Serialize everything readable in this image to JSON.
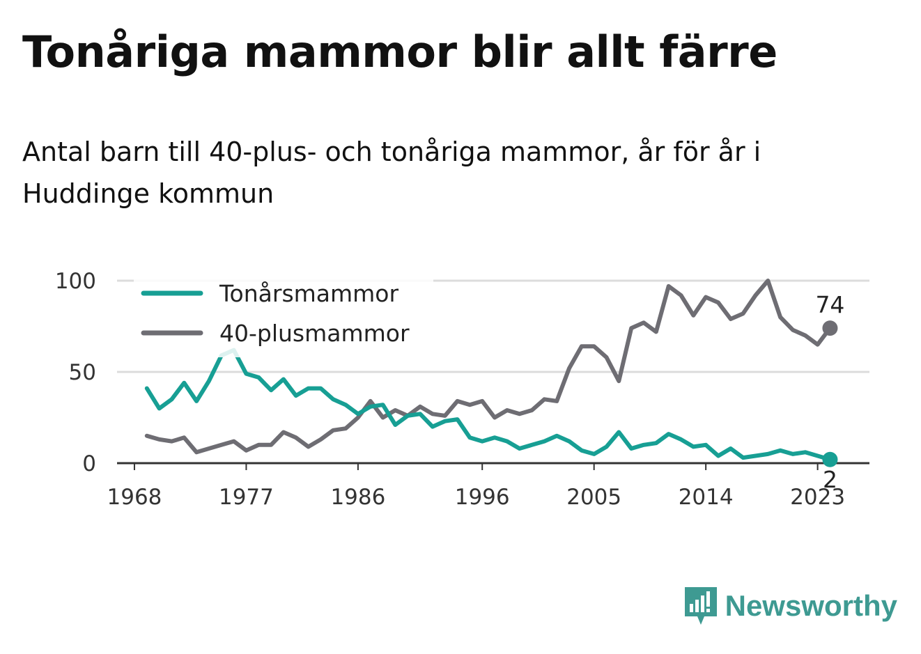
{
  "title": "Tonåriga mammor blir allt färre",
  "subtitle": "Antal barn till 40-plus- och tonåriga mammor, år för år i Huddinge kommun",
  "brand": {
    "name": "Newsworthy",
    "color": "#3e9a92",
    "icon": "newsworthy-logo-icon"
  },
  "chart_data": {
    "type": "line",
    "title": "",
    "xlabel": "",
    "ylabel": "",
    "xlim": [
      1968,
      2026
    ],
    "ylim": [
      0,
      100
    ],
    "y_ticks": [
      0,
      50,
      100
    ],
    "x_ticks": [
      1968,
      1977,
      1986,
      1996,
      2005,
      2014,
      2023
    ],
    "grid": "horizontal",
    "legend_position": "top-left",
    "x": [
      1969,
      1970,
      1971,
      1972,
      1973,
      1974,
      1975,
      1976,
      1977,
      1978,
      1979,
      1980,
      1981,
      1982,
      1983,
      1984,
      1985,
      1986,
      1987,
      1988,
      1989,
      1990,
      1991,
      1992,
      1993,
      1994,
      1995,
      1996,
      1997,
      1998,
      1999,
      2000,
      2001,
      2002,
      2003,
      2004,
      2005,
      2006,
      2007,
      2008,
      2009,
      2010,
      2011,
      2012,
      2013,
      2014,
      2015,
      2016,
      2017,
      2018,
      2019,
      2020,
      2021,
      2022,
      2023,
      2024
    ],
    "series": [
      {
        "name": "Tonårsmammor",
        "color": "#179f94",
        "end_label": "2",
        "values": [
          41,
          30,
          35,
          44,
          34,
          45,
          59,
          62,
          49,
          47,
          40,
          46,
          37,
          41,
          41,
          35,
          32,
          27,
          31,
          32,
          21,
          26,
          27,
          20,
          23,
          24,
          14,
          12,
          14,
          12,
          8,
          10,
          12,
          15,
          12,
          7,
          5,
          9,
          17,
          8,
          10,
          11,
          16,
          13,
          9,
          10,
          4,
          8,
          3,
          4,
          5,
          7,
          5,
          6,
          4,
          2
        ]
      },
      {
        "name": "40-plusmammor",
        "color": "#6e6d73",
        "end_label": "74",
        "values": [
          15,
          13,
          12,
          14,
          6,
          8,
          10,
          12,
          7,
          10,
          10,
          17,
          14,
          9,
          13,
          18,
          19,
          25,
          34,
          25,
          29,
          26,
          31,
          27,
          26,
          34,
          32,
          34,
          25,
          29,
          27,
          29,
          35,
          34,
          52,
          64,
          64,
          58,
          45,
          74,
          77,
          72,
          97,
          92,
          81,
          91,
          88,
          79,
          82,
          92,
          100,
          80,
          73,
          70,
          65,
          74
        ]
      }
    ]
  }
}
